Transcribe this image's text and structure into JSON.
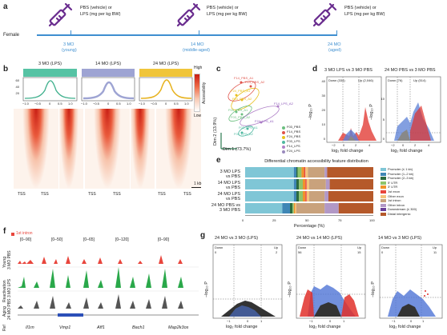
{
  "panel_a": {
    "letter": "a",
    "female": "Female",
    "t3": [
      "3 MO",
      "(young)"
    ],
    "t14": [
      "14 MO",
      "(middle-aged)"
    ],
    "t24": [
      "24 MO",
      "(aged)"
    ],
    "inj": [
      "PBS (vehicle) or",
      "LPS (mg per kg BW)"
    ]
  },
  "panel_b": {
    "letter": "b",
    "groups": [
      "3 MO (LPS)",
      "14 MO (LPS)",
      "24 MO (LPS)"
    ],
    "group_colors": [
      "#56c3a4",
      "#9ea4d3",
      "#f0c53a"
    ],
    "y_ticks": [
      "60",
      "40",
      "20"
    ],
    "x_ticks": [
      "−1.0",
      "−0.5",
      "0",
      "0.5",
      "1.0"
    ],
    "tss": "TSS",
    "high": "High",
    "low": "Low",
    "accessibility": "Accessibility",
    "scale": "1 kb"
  },
  "panel_c": {
    "letter": "c",
    "dim1": "Dim 1 (73.7%)",
    "dim2": "Dim 2 (13.9%)",
    "labels": [
      "F03_PBS_A1",
      "F03_PBS_A2",
      "F14_PBS_A1",
      "F14_PBS_A2",
      "F24_PBS_A1",
      "F24_PBS_A2",
      "F14_LPS_A2",
      "F24_LPS_A1",
      "F03_LPS_A1",
      "F03_LPS_A2"
    ],
    "legend": [
      "F03_PBS",
      "F14_PBS",
      "F24_PBS",
      "F03_LPS",
      "F14_LPS",
      "F24_LPS"
    ]
  },
  "panel_d": {
    "letter": "d",
    "left_title": "3 MO LPS vs 3 MO PBS",
    "right_title": "24 MO PBS vs 3 MO PBS",
    "left_down": "Down (334)",
    "left_up": "Up (2,046)",
    "right_down": "Down (76)",
    "right_up": "Up (514)",
    "ylabel": "−log₁₀ P",
    "xlabel": "log₂ fold change",
    "left_y": [
      "40",
      "30",
      "20",
      "10",
      "0"
    ],
    "right_y": [
      "10",
      "5",
      "0"
    ],
    "x_ticks": [
      "−2",
      "0",
      "2",
      "4"
    ]
  },
  "panel_e": {
    "letter": "e",
    "title": "Differential chromatin accessibility feature distribution",
    "xlabel": "Percentage (%)",
    "x_ticks": [
      "0",
      "25",
      "50",
      "75",
      "100"
    ]
  },
  "chart_data": {
    "type": "bar",
    "orientation": "horizontal",
    "stacked": true,
    "title": "Differential chromatin accessibility feature distribution",
    "xlabel": "Percentage (%)",
    "xlim": [
      0,
      100
    ],
    "categories": [
      "3 MO LPS vs PBS",
      "14 MO LPS vs PBS",
      "24 MO LPS vs PBS",
      "24 MO PBS vs 3 MO PBS"
    ],
    "series": [
      {
        "name": "Promoter (≤ 1 kb)",
        "color": "#7fc6d6",
        "values": [
          38,
          38,
          38,
          29
        ]
      },
      {
        "name": "Promoter (1–2 kb)",
        "color": "#3f86b5",
        "values": [
          2,
          2,
          2,
          6
        ]
      },
      {
        "name": "Promoter (2–3 kb)",
        "color": "#2c6b3f",
        "values": [
          1,
          2,
          2,
          2
        ]
      },
      {
        "name": "5′ UTR",
        "color": "#8fc46b",
        "values": [
          3,
          3,
          3,
          1
        ]
      },
      {
        "name": "3′ UTR",
        "color": "#f0932b",
        "values": [
          2,
          2,
          2,
          1
        ]
      },
      {
        "name": "1st exon",
        "color": "#e8453c",
        "values": [
          1,
          1,
          1,
          0
        ]
      },
      {
        "name": "Other exon",
        "color": "#f3c47d",
        "values": [
          2,
          2,
          2,
          1
        ]
      },
      {
        "name": "1st intron",
        "color": "#c9a27c",
        "values": [
          13,
          13,
          12,
          22
        ]
      },
      {
        "name": "Other intron",
        "color": "#b298c6",
        "values": [
          2,
          3,
          3,
          11
        ]
      },
      {
        "name": "Downstream (≤ 300)",
        "color": "#6a3f98",
        "values": [
          0,
          0,
          0,
          0
        ]
      },
      {
        "name": "Distal intergenic",
        "color": "#b5592a",
        "values": [
          36,
          34,
          35,
          27
        ]
      }
    ]
  },
  "panel_f": {
    "letter": "f",
    "legend": "1st intron",
    "scales": [
      "[0–90]",
      "[0–50]",
      "[0–65]",
      "[0–120]",
      "[0–90]"
    ],
    "genes": [
      "Il1rn",
      "Vmp1",
      "Aff1",
      "Bach1",
      "Map2k3os"
    ],
    "rows": [
      "Young",
      "3 MO PBS",
      "Reactivation",
      "3 MO LPS",
      "Aging",
      "24 MO PBS",
      "Ref"
    ]
  },
  "panel_g": {
    "letter": "g",
    "titles": [
      "24 MO vs 3 MO (LPS)",
      "24 MO vs 14 MO (LPS)",
      "14 MO vs 3 MO (LPS)"
    ],
    "down": [
      "Down",
      "Down",
      "Down"
    ],
    "up": [
      "Up",
      "Up",
      "Up"
    ],
    "down_n": [
      "0",
      "56",
      "0"
    ],
    "up_n": [
      "2",
      "15",
      "11"
    ],
    "ylabel": "−log₁₀ P",
    "xlabel": "log₂ fold change",
    "x_ticks": [
      "−1",
      "0",
      "1"
    ]
  }
}
